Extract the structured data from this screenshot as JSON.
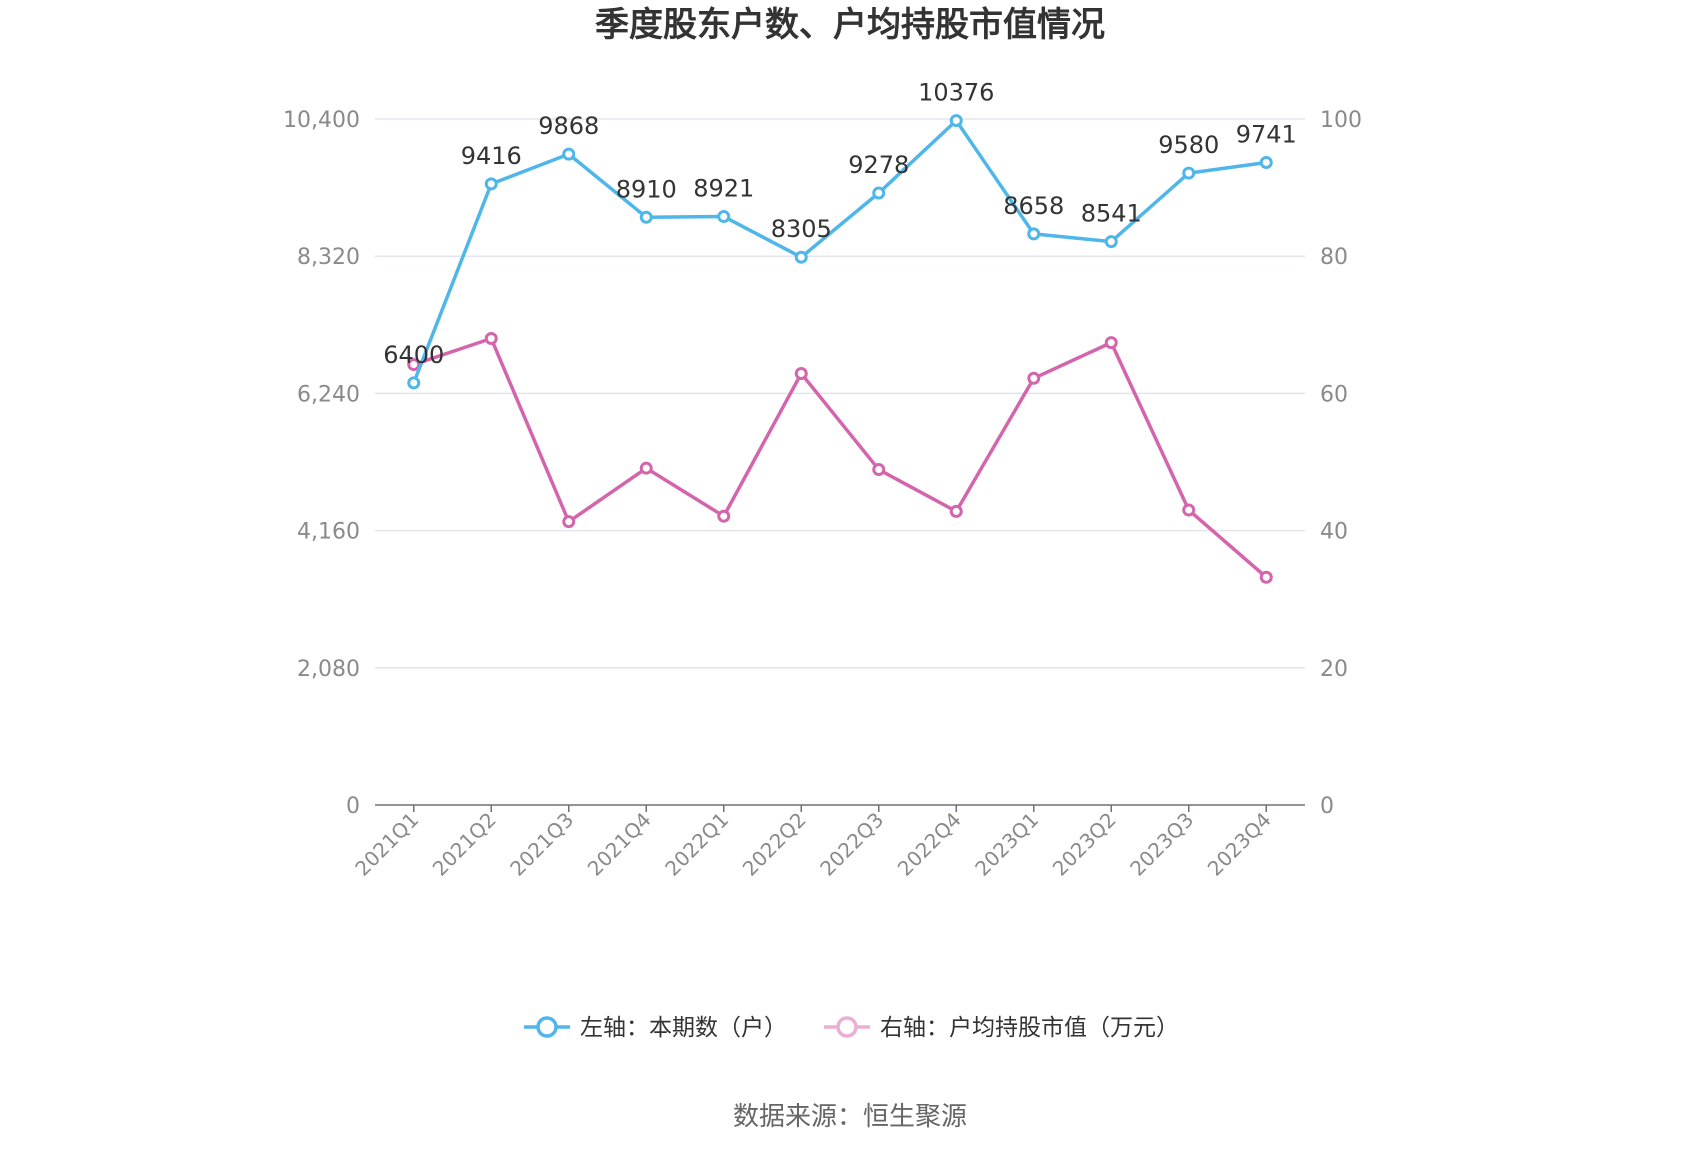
{
  "chart_data": {
    "type": "line",
    "title": "季度股东户数、户均持股市值情况",
    "categories": [
      "2021Q1",
      "2021Q2",
      "2021Q3",
      "2021Q4",
      "2022Q1",
      "2022Q2",
      "2022Q3",
      "2022Q4",
      "2023Q1",
      "2023Q2",
      "2023Q3",
      "2023Q4"
    ],
    "left_axis": {
      "ylim": [
        0,
        10400
      ],
      "ticks": [
        "0",
        "2,080",
        "4,160",
        "6,240",
        "8,320",
        "10,400"
      ],
      "tick_values": [
        0,
        2080,
        4160,
        6240,
        8320,
        10400
      ]
    },
    "right_axis": {
      "ylim": [
        0,
        100
      ],
      "ticks": [
        "0",
        "20",
        "40",
        "60",
        "80",
        "100"
      ],
      "tick_values": [
        0,
        20,
        40,
        60,
        80,
        100
      ]
    },
    "series": [
      {
        "name": "左轴：本期数（户）",
        "axis": "left",
        "color": "#4fb6ea",
        "values": [
          6400,
          9416,
          9868,
          8910,
          8921,
          8305,
          9278,
          10376,
          8658,
          8541,
          9580,
          9741
        ],
        "labels": [
          "6400",
          "9416",
          "9868",
          "8910",
          "8921",
          "8305",
          "9278",
          "10376",
          "8658",
          "8541",
          "9580",
          "9741"
        ]
      },
      {
        "name": "右轴：户均持股市值（万元）",
        "axis": "right",
        "color": "#d465ac",
        "legend_color": "#eab0d3",
        "values": [
          64.2,
          68.0,
          41.3,
          49.1,
          42.1,
          62.9,
          48.9,
          42.8,
          62.2,
          67.4,
          43.0,
          33.2
        ]
      }
    ],
    "grid": true,
    "legend_position": "bottom"
  },
  "source": "数据来源：恒生聚源"
}
